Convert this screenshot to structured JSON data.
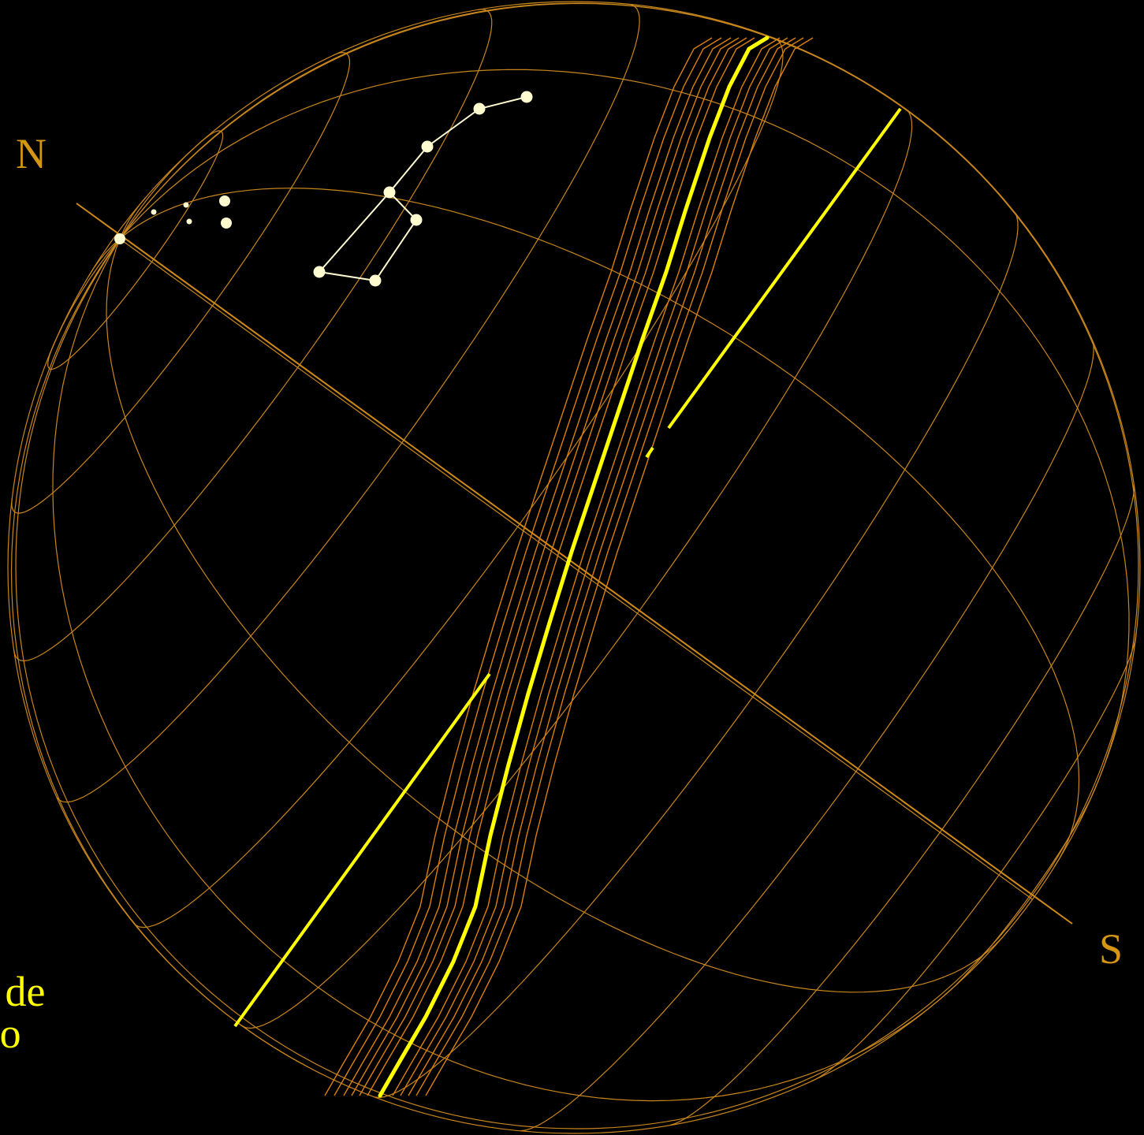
{
  "labels": {
    "north": "N",
    "south": "S"
  },
  "caption": {
    "line1": "da de",
    "line2": "'aco"
  },
  "colors": {
    "background": "#000000",
    "grid": "#c8861c",
    "axis": "#d08a18",
    "pole_label": "#d69614",
    "band_line": "#d9800f",
    "ecliptic": "#ffff00",
    "star": "#fffbd0",
    "caption": "#ffff00"
  }
}
